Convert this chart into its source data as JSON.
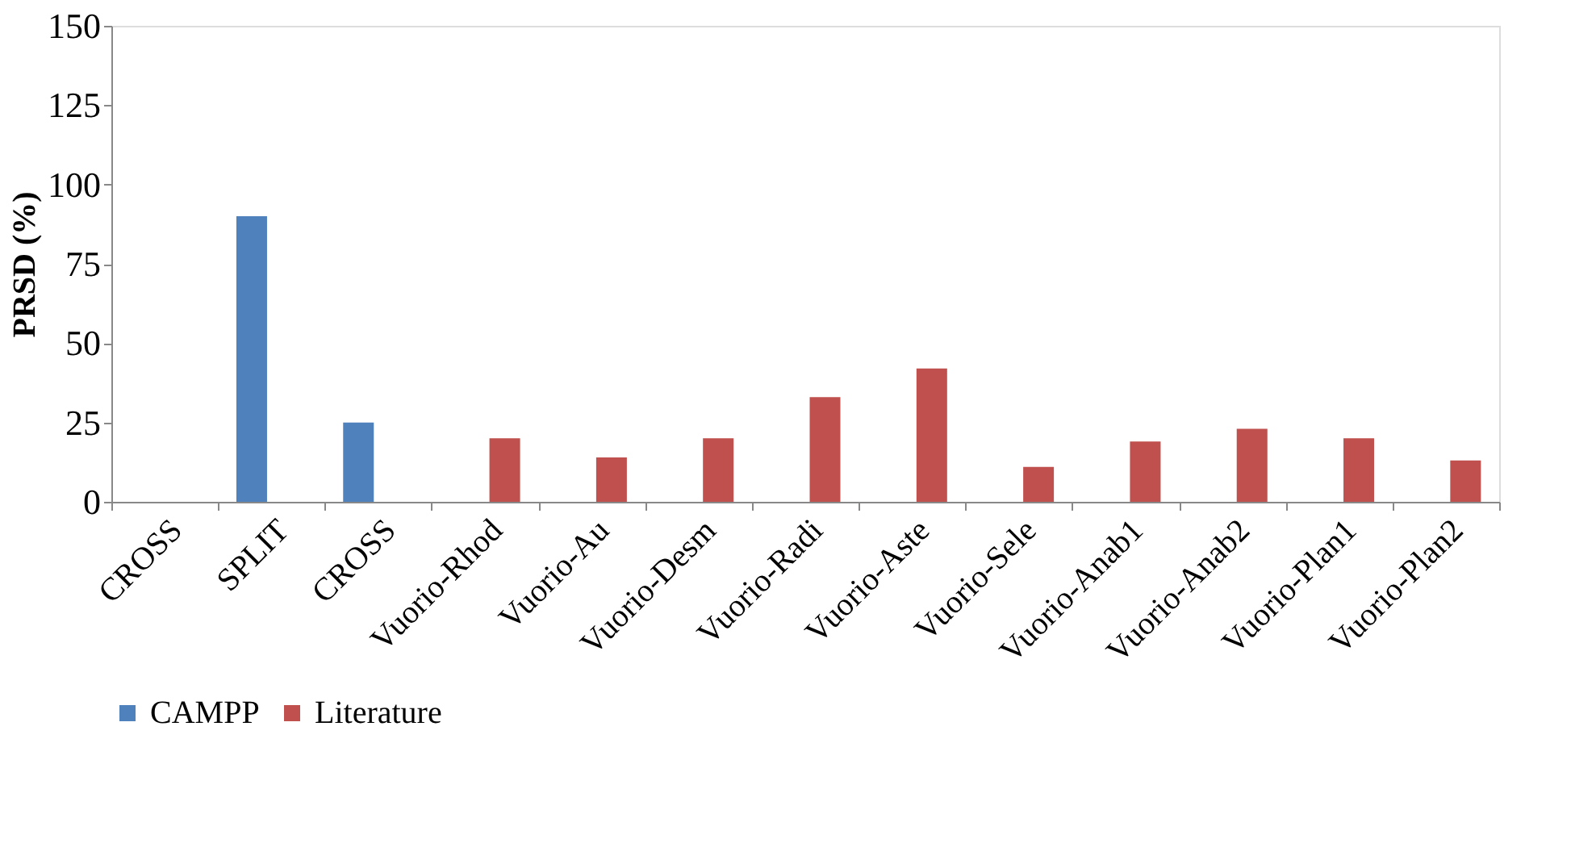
{
  "chart_data": {
    "type": "bar",
    "ylabel": "PRSD (%)",
    "categories": [
      "CROSS",
      "SPLIT",
      "CROSS",
      "Vuorio-Rhod",
      "Vuorio-Au",
      "Vuorio-Desm",
      "Vuorio-Radi",
      "Vuorio-Aste",
      "Vuorio-Sele",
      "Vuorio-Anab1",
      "Vuorio-Anab2",
      "Vuorio-Plan1",
      "Vuorio-Plan2"
    ],
    "series": [
      {
        "name": "CAMPP",
        "color": "#4f81bd",
        "values": [
          null,
          90,
          25,
          null,
          null,
          null,
          null,
          null,
          null,
          null,
          null,
          null,
          null
        ]
      },
      {
        "name": "Literature",
        "color": "#c0504d",
        "values": [
          null,
          null,
          null,
          20,
          14,
          20,
          33,
          42,
          11,
          19,
          23,
          20,
          13
        ]
      }
    ],
    "ylim": [
      0,
      150
    ],
    "yticks": [
      0,
      25,
      50,
      75,
      100,
      125,
      150
    ],
    "grid": false,
    "legend": "bottom"
  }
}
